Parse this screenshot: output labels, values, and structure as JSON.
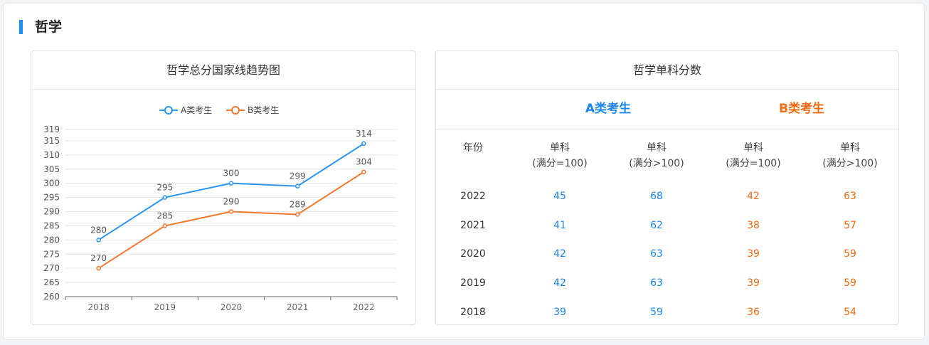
{
  "page": {
    "section_title": "哲学"
  },
  "chart_card": {
    "title": "哲学总分国家线趋势图"
  },
  "chart_data": {
    "type": "line",
    "title": "哲学总分国家线趋势图",
    "categories": [
      "2018",
      "2019",
      "2020",
      "2021",
      "2022"
    ],
    "series": [
      {
        "name": "A类考生",
        "color": "#2b95ef",
        "values": [
          280,
          295,
          300,
          299,
          314
        ]
      },
      {
        "name": "B类考生",
        "color": "#f3782e",
        "values": [
          270,
          285,
          290,
          289,
          304
        ]
      }
    ],
    "y_ticks": [
      260,
      265,
      270,
      275,
      280,
      285,
      290,
      295,
      300,
      305,
      310,
      315,
      319
    ],
    "ylim": [
      260,
      319
    ],
    "grid": true,
    "legend_position": "top"
  },
  "table_card": {
    "title": "哲学单科分数",
    "group_a_label": "A类考生",
    "group_b_label": "B类考生",
    "group_a_color": "#1a86ee",
    "group_b_color": "#f26a10",
    "headers": {
      "year": "年份",
      "a_le100_line1": "单科",
      "a_le100_line2": "(满分=100)",
      "a_gt100_line1": "单科",
      "a_gt100_line2": "(满分>100)",
      "b_le100_line1": "单科",
      "b_le100_line2": "(满分=100)",
      "b_gt100_line1": "单科",
      "b_gt100_line2": "(满分>100)"
    },
    "rows": [
      {
        "year": "2022",
        "a1": "45",
        "a2": "68",
        "b1": "42",
        "b2": "63"
      },
      {
        "year": "2021",
        "a1": "41",
        "a2": "62",
        "b1": "38",
        "b2": "57"
      },
      {
        "year": "2020",
        "a1": "42",
        "a2": "63",
        "b1": "39",
        "b2": "59"
      },
      {
        "year": "2019",
        "a1": "42",
        "a2": "63",
        "b1": "39",
        "b2": "59"
      },
      {
        "year": "2018",
        "a1": "39",
        "a2": "59",
        "b1": "36",
        "b2": "54"
      }
    ]
  }
}
